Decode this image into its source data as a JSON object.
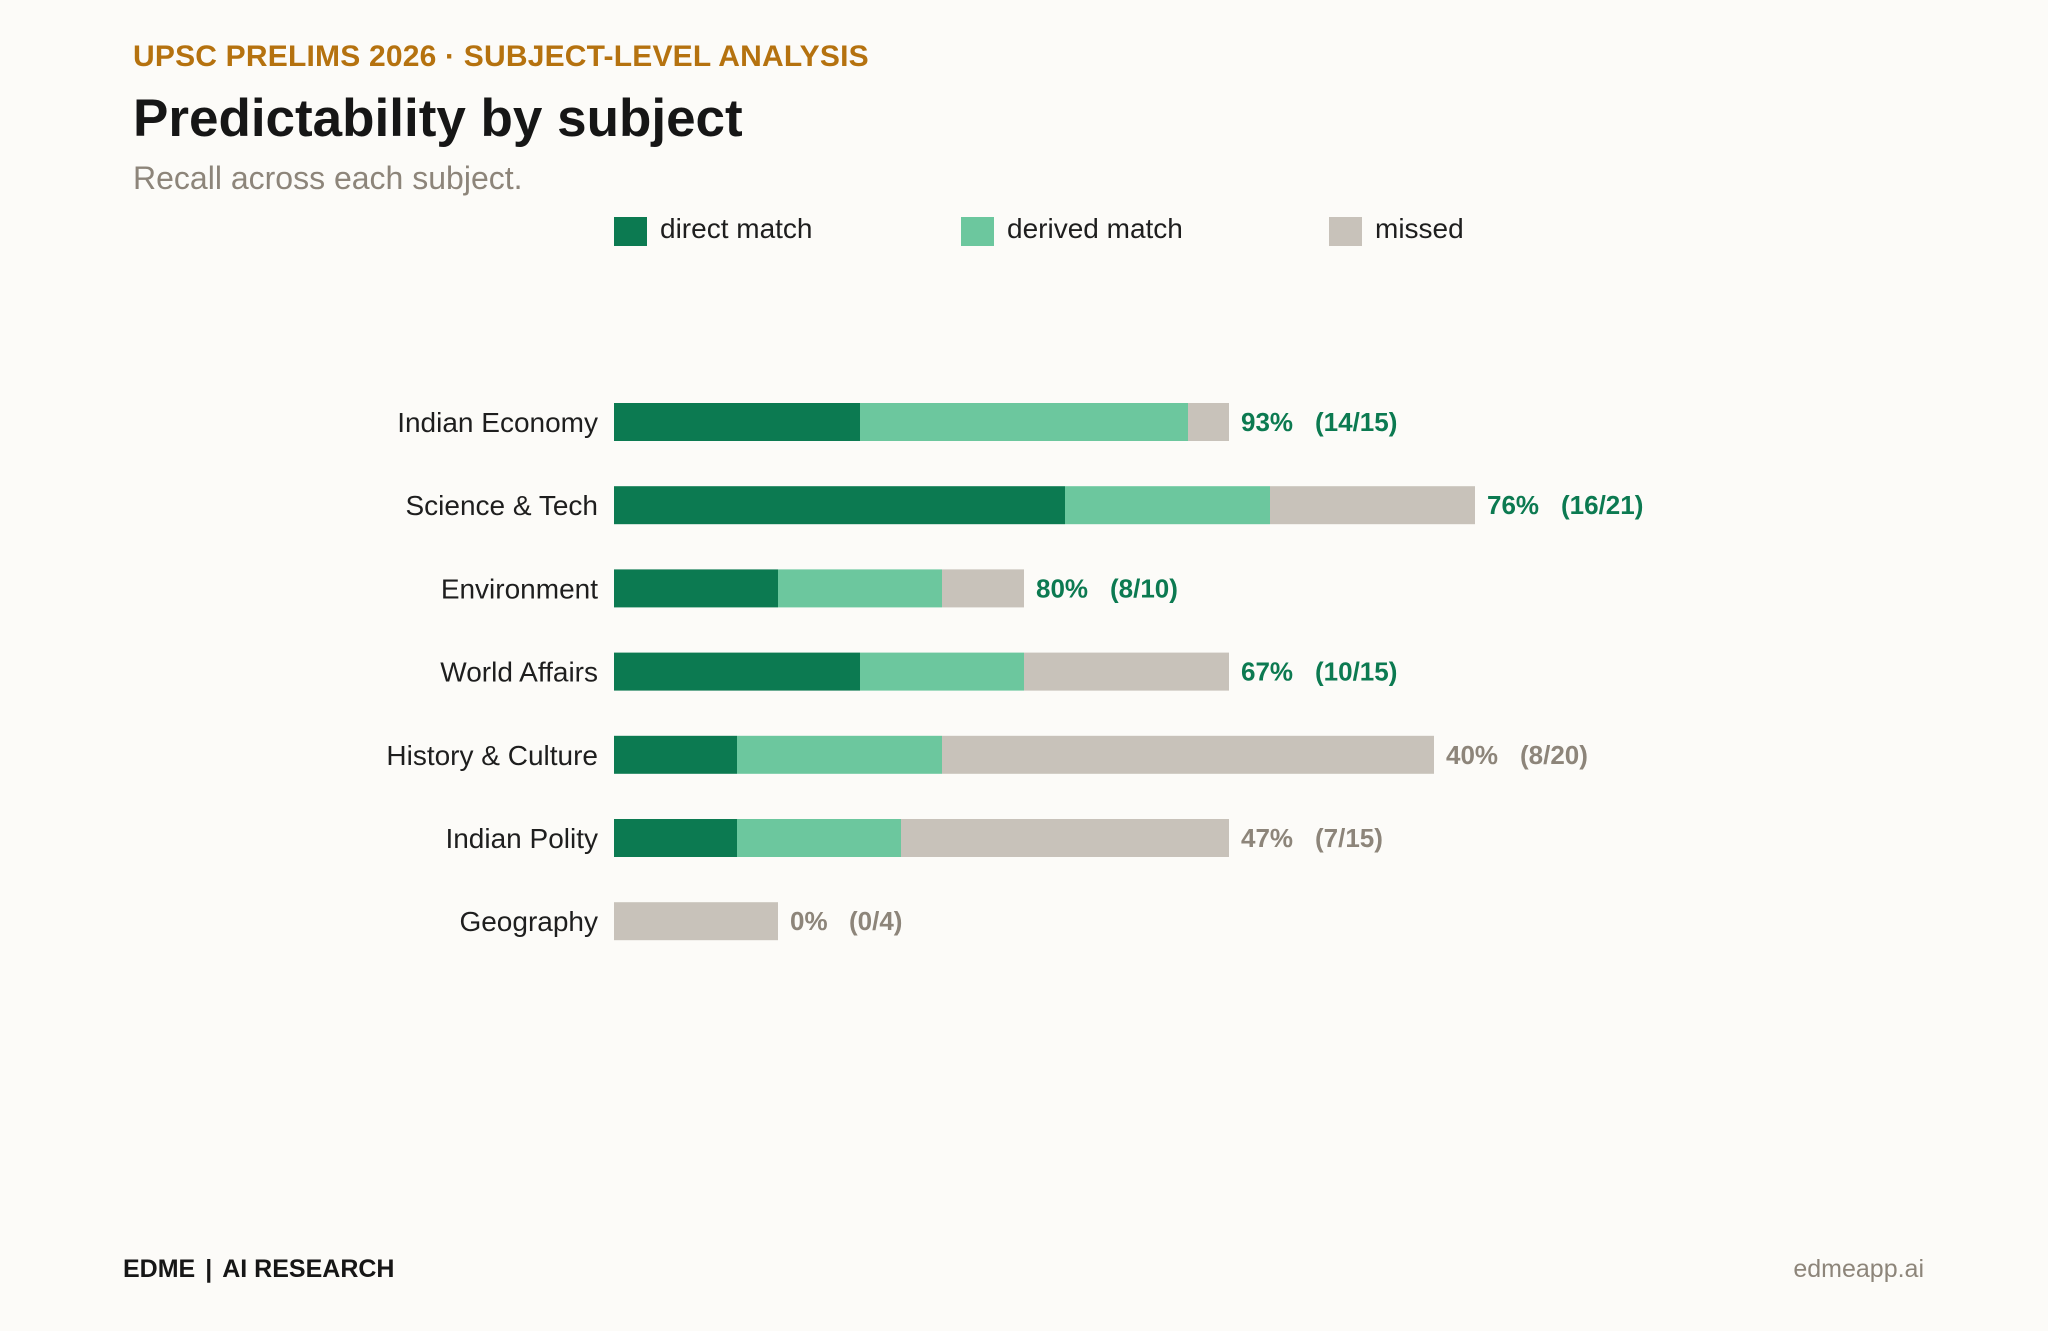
{
  "header": {
    "kicker": "UPSC PRELIMS 2026 · SUBJECT-LEVEL ANALYSIS",
    "title": "Predictability by subject",
    "subtitle": "Recall across each subject."
  },
  "footer": {
    "brand": "EDME",
    "separator": "|",
    "tagline": "AI RESEARCH",
    "url": "edmeapp.ai"
  },
  "colors": {
    "direct": "#0c7a51",
    "derived": "#6cc79e",
    "missed": "#c8c2ba",
    "label_good": "#0c7a51",
    "label_poor": "#8d857a"
  },
  "chart_data": {
    "type": "bar",
    "orientation": "horizontal",
    "stacked": true,
    "title": "Predictability by subject",
    "subtitle": "Recall across each subject.",
    "legend": [
      "direct match",
      "derived match",
      "missed"
    ],
    "legend_position": "top",
    "grid": false,
    "categories": [
      "Indian Economy",
      "Science & Tech",
      "Environment",
      "World Affairs",
      "History & Culture",
      "Indian Polity",
      "Geography"
    ],
    "series": [
      {
        "name": "direct match",
        "values": [
          6,
          11,
          4,
          6,
          3,
          3,
          0
        ]
      },
      {
        "name": "derived match",
        "values": [
          8,
          5,
          4,
          4,
          5,
          4,
          0
        ]
      },
      {
        "name": "missed",
        "values": [
          1,
          5,
          2,
          5,
          12,
          8,
          4
        ]
      }
    ],
    "value_labels": [
      {
        "percent": "93%",
        "fraction": "(14/15)"
      },
      {
        "percent": "76%",
        "fraction": "(16/21)"
      },
      {
        "percent": "80%",
        "fraction": "(8/10)"
      },
      {
        "percent": "67%",
        "fraction": "(10/15)"
      },
      {
        "percent": "40%",
        "fraction": "(8/20)"
      },
      {
        "percent": "47%",
        "fraction": "(7/15)"
      },
      {
        "percent": "0%",
        "fraction": "(0/4)"
      }
    ],
    "highlight_threshold_percent": 50
  }
}
